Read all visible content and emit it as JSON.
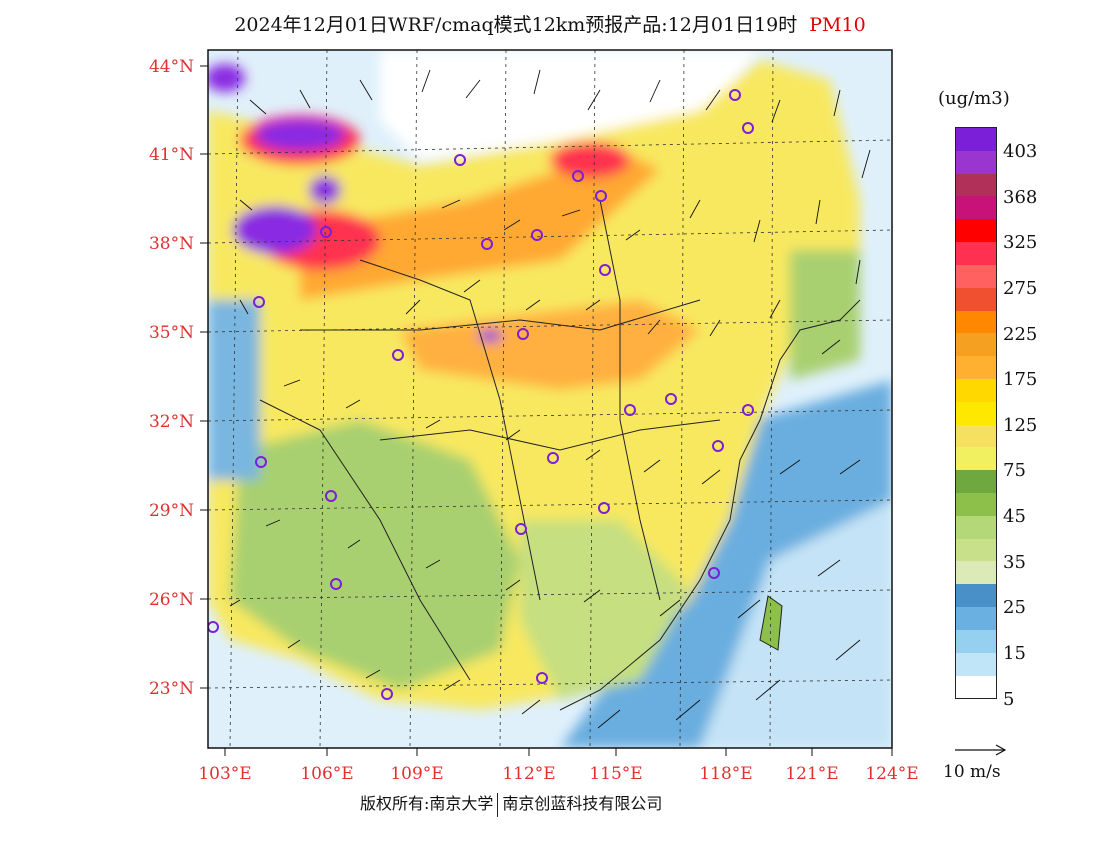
{
  "header": {
    "title": "2024年12月01日WRF/cmaq模式12km预报产品:12月01日19时",
    "product": "PM10"
  },
  "map": {
    "lat_ticks": [
      "44°N",
      "41°N",
      "38°N",
      "35°N",
      "32°N",
      "29°N",
      "26°N",
      "23°N"
    ],
    "lon_ticks": [
      "103°E",
      "106°E",
      "109°E",
      "112°E",
      "115°E",
      "118°E",
      "121°E",
      "124°E"
    ]
  },
  "colorbar": {
    "unit": "(ug/m3)",
    "labels": [
      "403",
      "368",
      "325",
      "275",
      "225",
      "175",
      "125",
      "75",
      "45",
      "35",
      "25",
      "15",
      "5"
    ],
    "colors": [
      "#7b1fd8",
      "#9a35d0",
      "#b0305a",
      "#c8127a",
      "#ff0000",
      "#ff3050",
      "#ff6060",
      "#f05030",
      "#ff8800",
      "#f5a020",
      "#ffb030",
      "#ffd800",
      "#ffe800",
      "#f5e060",
      "#f0f060",
      "#70a840",
      "#8cc04a",
      "#b4d878",
      "#c8e08a",
      "#dceab8",
      "#4a90c8",
      "#6ab0e0",
      "#96d0f0",
      "#c0e4f8",
      "#ffffff"
    ]
  },
  "wind_ref": {
    "label": "10 m/s"
  },
  "footer": {
    "left": "版权所有:南京大学",
    "right": "南京创蓝科技有限公司"
  }
}
